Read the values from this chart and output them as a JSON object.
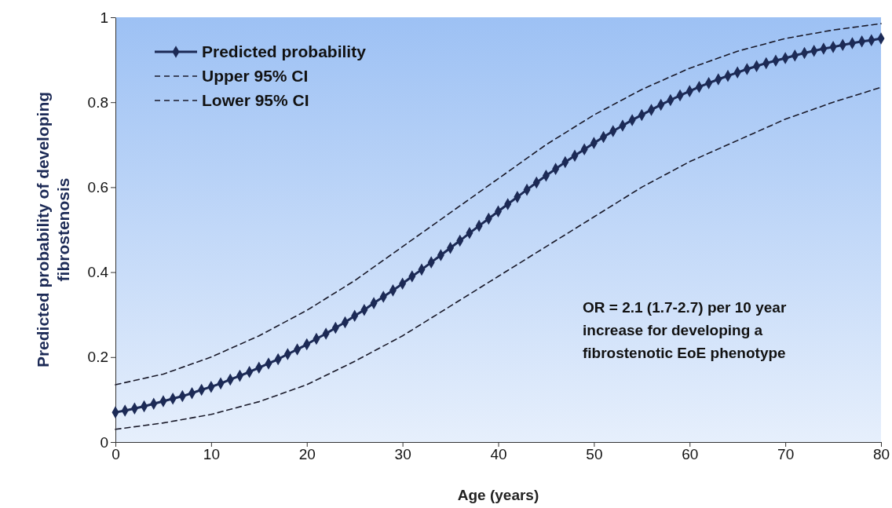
{
  "chart_data": {
    "type": "line",
    "xlabel": "Age (years)",
    "ylabel": "Predicted probability of developing fibrostenosis",
    "xlim": [
      0,
      80
    ],
    "xticks": [
      0,
      10,
      20,
      30,
      40,
      50,
      60,
      70,
      80
    ],
    "ylim": [
      0,
      1
    ],
    "yticks": [
      0,
      0.2,
      0.4,
      0.6,
      0.8,
      1
    ],
    "legend": "top left",
    "annotations": [
      "OR = 2.1 (1.7-2.7) per 10 year increase for developing a fibrostenotic EoE phenotype"
    ],
    "series": [
      {
        "name": "Predicted probability",
        "color": "#1c2a56",
        "marker": "diamond",
        "line_style": "solid",
        "x": [
          0,
          1,
          2,
          3,
          4,
          5,
          6,
          7,
          8,
          9,
          10,
          11,
          12,
          13,
          14,
          15,
          16,
          17,
          18,
          19,
          20,
          21,
          22,
          23,
          24,
          25,
          26,
          27,
          28,
          29,
          30,
          31,
          32,
          33,
          34,
          35,
          36,
          37,
          38,
          39,
          40,
          41,
          42,
          43,
          44,
          45,
          46,
          47,
          48,
          49,
          50,
          51,
          52,
          53,
          54,
          55,
          56,
          57,
          58,
          59,
          60,
          61,
          62,
          63,
          64,
          65,
          66,
          67,
          68,
          69,
          70,
          71,
          72,
          73,
          74,
          75,
          76,
          77,
          78,
          79,
          80
        ],
        "values": [
          0.07,
          0.074,
          0.079,
          0.084,
          0.09,
          0.096,
          0.102,
          0.108,
          0.115,
          0.123,
          0.13,
          0.138,
          0.147,
          0.156,
          0.165,
          0.175,
          0.185,
          0.195,
          0.207,
          0.218,
          0.23,
          0.243,
          0.255,
          0.269,
          0.282,
          0.297,
          0.311,
          0.327,
          0.342,
          0.357,
          0.373,
          0.39,
          0.406,
          0.423,
          0.44,
          0.457,
          0.474,
          0.492,
          0.509,
          0.526,
          0.543,
          0.56,
          0.577,
          0.594,
          0.611,
          0.627,
          0.643,
          0.659,
          0.674,
          0.689,
          0.704,
          0.718,
          0.732,
          0.745,
          0.758,
          0.77,
          0.782,
          0.794,
          0.805,
          0.816,
          0.826,
          0.836,
          0.845,
          0.854,
          0.862,
          0.87,
          0.878,
          0.885,
          0.892,
          0.898,
          0.904,
          0.91,
          0.916,
          0.921,
          0.926,
          0.93,
          0.935,
          0.939,
          0.943,
          0.946,
          0.95
        ]
      },
      {
        "name": "Upper 95% CI",
        "color": "#1a1a2a",
        "marker": "none",
        "line_style": "dashed",
        "x": [
          0,
          5,
          10,
          15,
          20,
          25,
          30,
          35,
          40,
          45,
          50,
          55,
          60,
          65,
          70,
          75,
          80
        ],
        "values": [
          0.135,
          0.16,
          0.2,
          0.25,
          0.31,
          0.38,
          0.46,
          0.54,
          0.62,
          0.7,
          0.77,
          0.83,
          0.88,
          0.92,
          0.95,
          0.97,
          0.985
        ]
      },
      {
        "name": "Lower 95% CI",
        "color": "#1a1a2a",
        "marker": "none",
        "line_style": "dashed",
        "x": [
          0,
          5,
          10,
          15,
          20,
          25,
          30,
          35,
          40,
          45,
          50,
          55,
          60,
          65,
          70,
          75,
          80
        ],
        "values": [
          0.03,
          0.045,
          0.065,
          0.095,
          0.135,
          0.19,
          0.25,
          0.32,
          0.39,
          0.46,
          0.53,
          0.6,
          0.66,
          0.71,
          0.76,
          0.8,
          0.835
        ]
      }
    ]
  }
}
